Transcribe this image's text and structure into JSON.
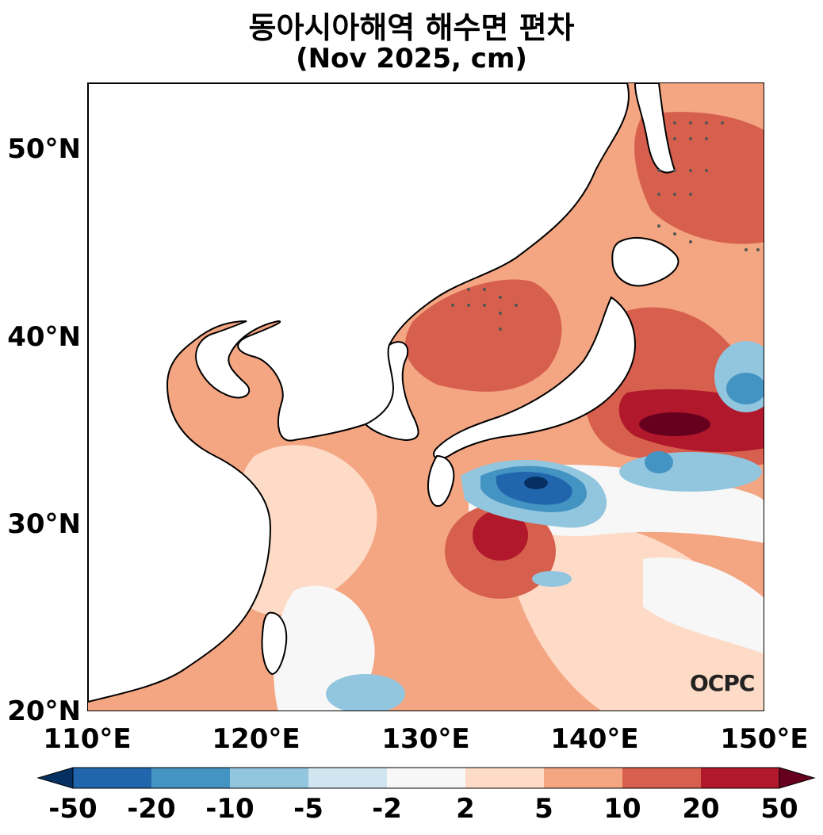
{
  "title": {
    "line1": "동아시아해역 해수면 편차",
    "line2": "(Nov 2025, cm)"
  },
  "map": {
    "lat_labels": [
      "50°N",
      "40°N",
      "30°N",
      "20°N"
    ],
    "lon_labels": [
      "110°E",
      "120°E",
      "130°E",
      "140°E",
      "150°E"
    ],
    "lon_range": [
      110,
      150
    ],
    "lat_range": [
      20,
      53.5
    ],
    "land_color": "#ffffff",
    "coastline_color": "#000000"
  },
  "colorbar": {
    "labels": [
      "-50",
      "-20",
      "-10",
      "-5",
      "-2",
      "2",
      "5",
      "10",
      "20",
      "50"
    ],
    "colors": [
      "#053061",
      "#2166ac",
      "#4393c3",
      "#92c5de",
      "#d1e5f0",
      "#f7f7f7",
      "#fddbc7",
      "#f4a582",
      "#d6604d",
      "#b2182b",
      "#67001f"
    ],
    "extend": "both"
  },
  "watermark": "OCPC"
}
